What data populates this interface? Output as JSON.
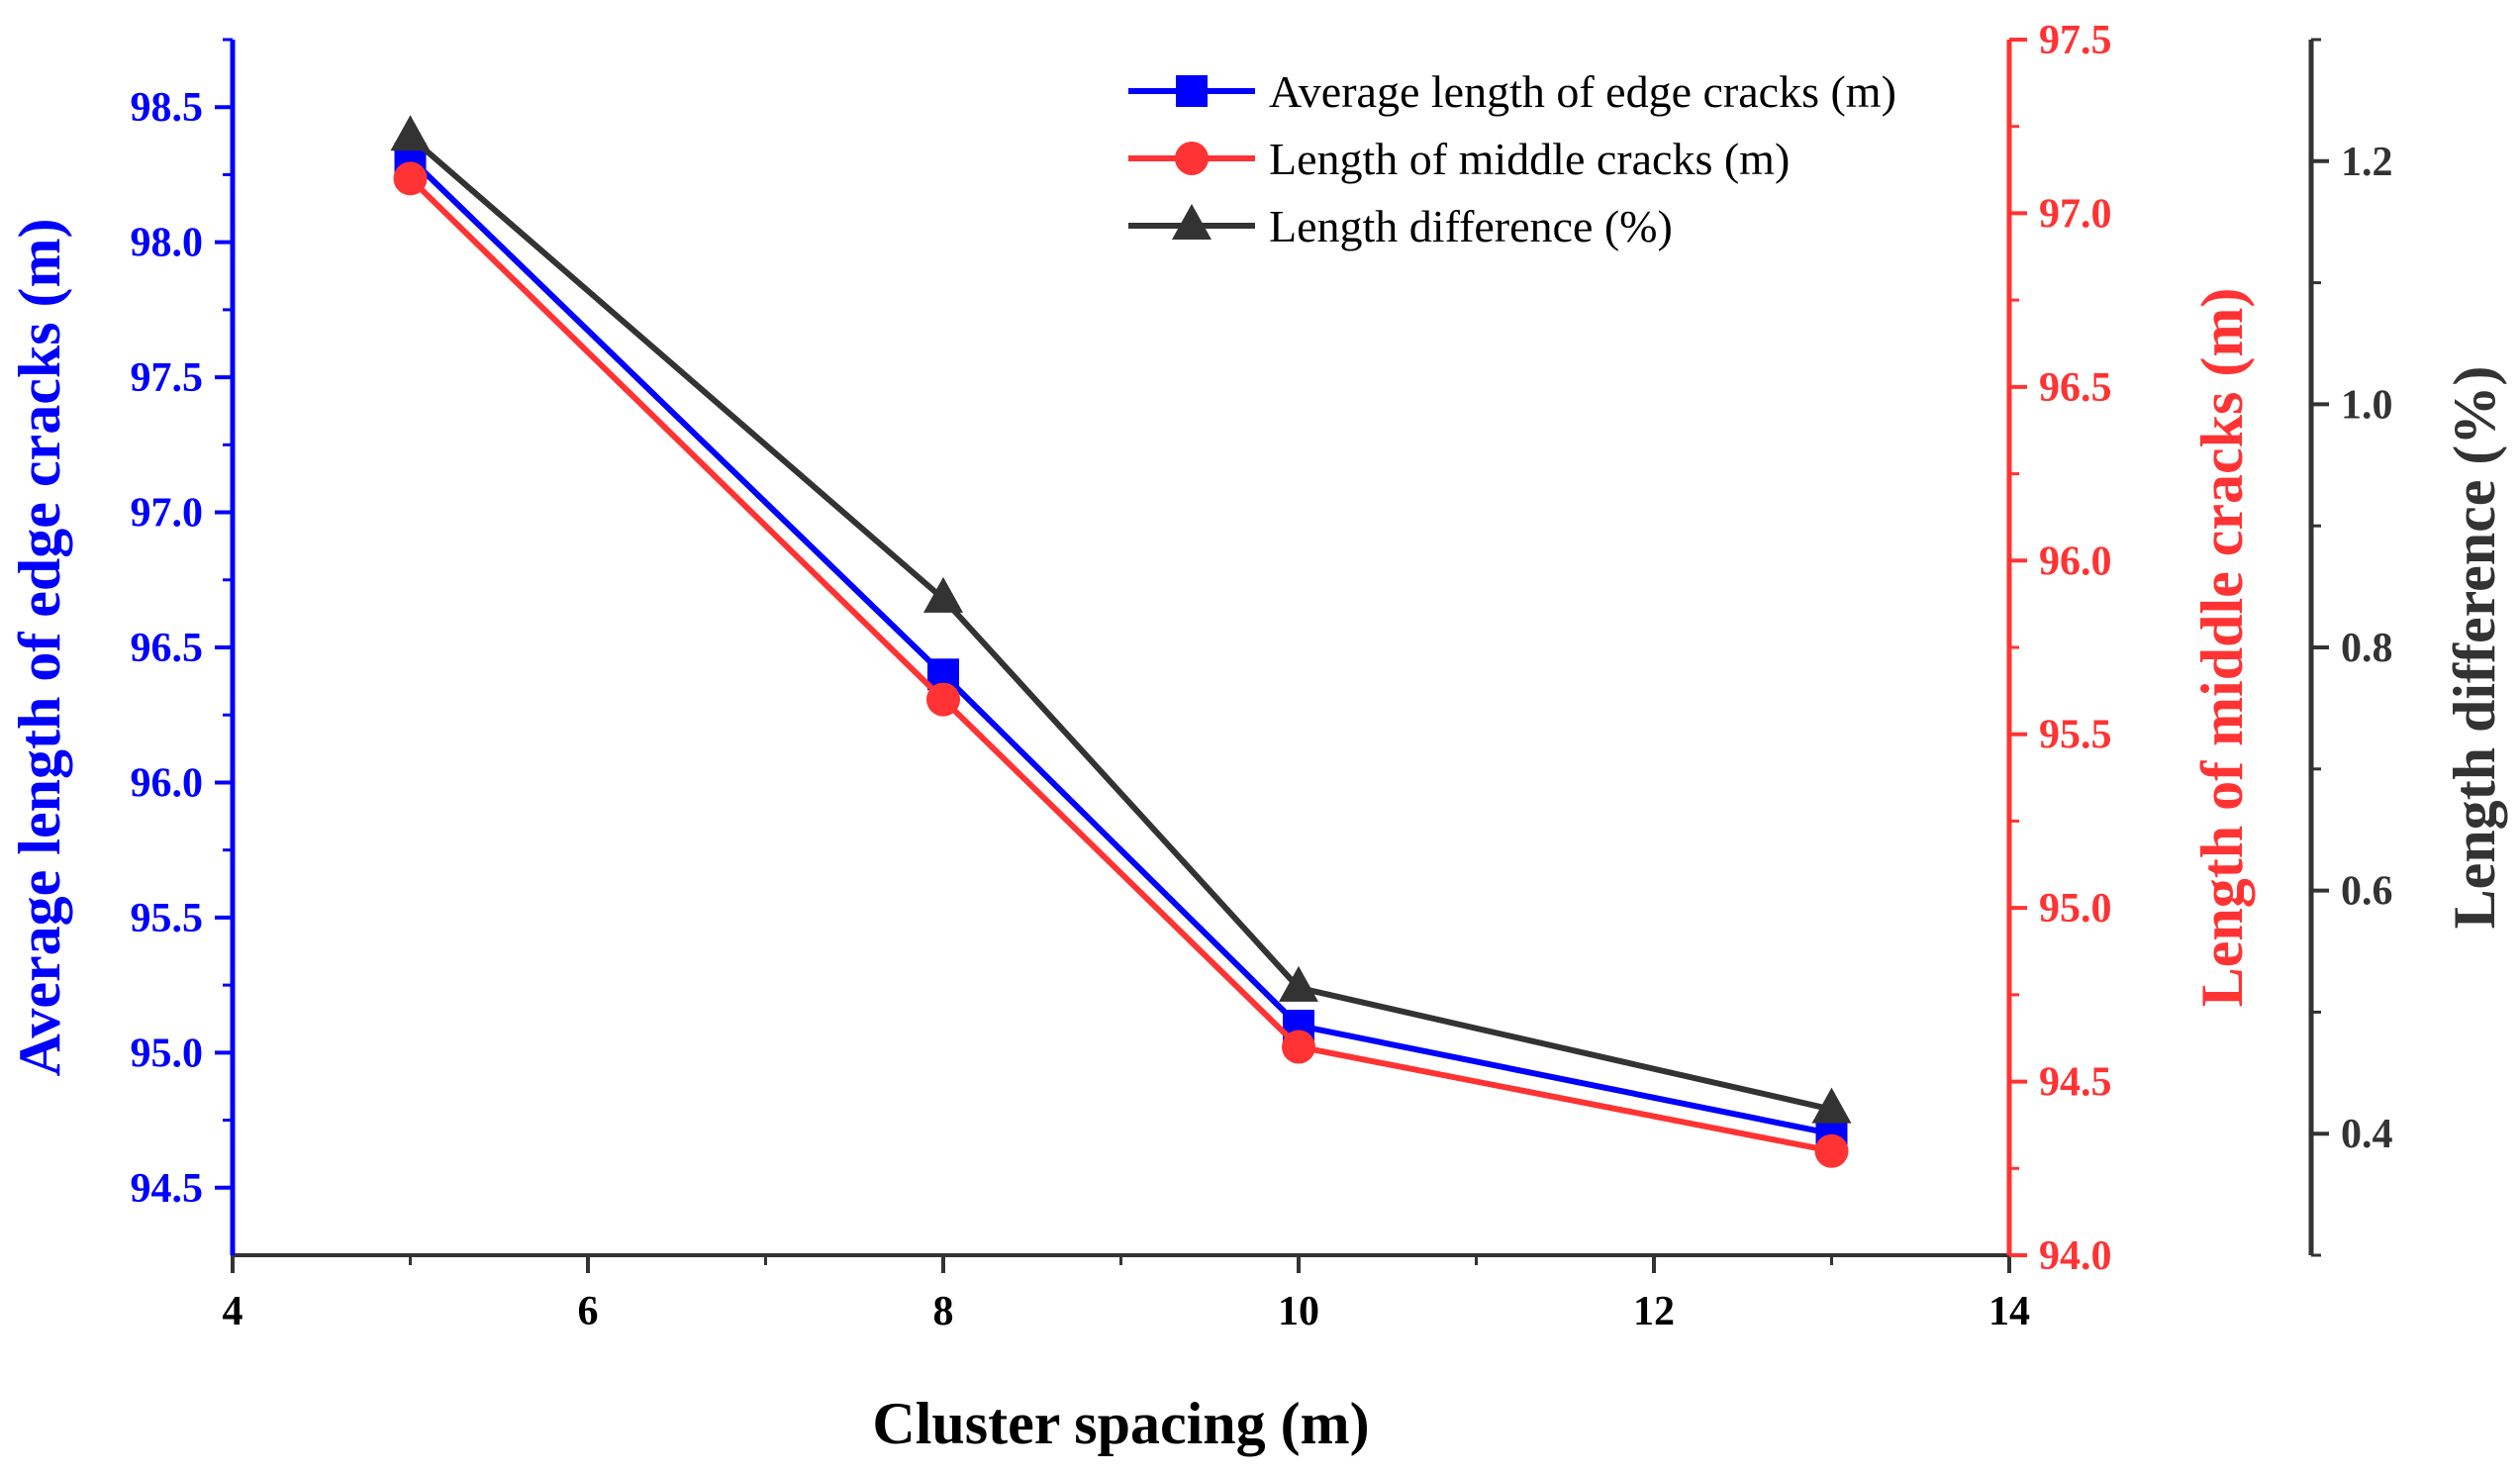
{
  "chart_data": {
    "type": "line",
    "xlabel": "Cluster spacing (m)",
    "x": [
      5,
      8,
      10,
      13
    ],
    "xlim": [
      4,
      14
    ],
    "xticks": [
      "4",
      "6",
      "8",
      "10",
      "12",
      "14"
    ],
    "legend_position": "top-right",
    "grid": false,
    "axes": [
      {
        "side": "left",
        "label": "Average length of edge cracks (m)",
        "color": "#0000FF",
        "ylim": [
          94.25,
          98.75
        ],
        "ticks": [
          "94.5",
          "95.0",
          "95.5",
          "96.0",
          "96.5",
          "97.0",
          "97.5",
          "98.0",
          "98.5"
        ]
      },
      {
        "side": "right",
        "label": "Length of middle cracks (m)",
        "color": "#FF3333",
        "ylim": [
          94.0,
          97.5
        ],
        "ticks": [
          "94.0",
          "94.5",
          "95.0",
          "95.5",
          "96.0",
          "96.5",
          "97.0",
          "97.5"
        ]
      },
      {
        "side": "right-offset",
        "label": "Length difference (%)",
        "color": "#333333",
        "ylim": [
          0.3,
          1.3
        ],
        "ticks": [
          "0.4",
          "0.6",
          "0.8",
          "1.0",
          "1.2"
        ]
      }
    ],
    "series": [
      {
        "name": "Average length of edge cracks (m)",
        "axis": 0,
        "marker": "square",
        "color": "#0000FF",
        "values": [
          98.31,
          96.4,
          95.1,
          94.7
        ]
      },
      {
        "name": "Length of middle cracks (m)",
        "axis": 1,
        "marker": "circle",
        "color": "#FF3333",
        "values": [
          97.1,
          95.6,
          94.6,
          94.3
        ]
      },
      {
        "name": "Length difference (%)",
        "axis": 2,
        "marker": "triangle",
        "color": "#333333",
        "values": [
          1.22,
          0.84,
          0.52,
          0.42
        ]
      }
    ]
  }
}
